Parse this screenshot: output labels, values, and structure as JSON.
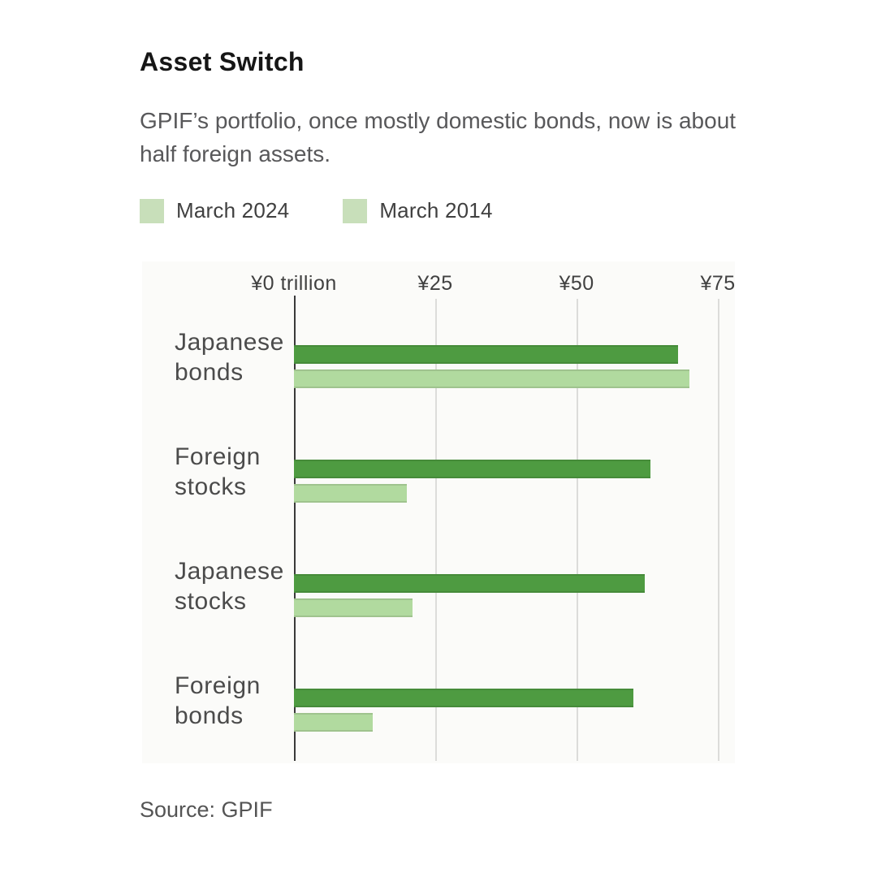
{
  "header": {
    "title": "Asset Switch",
    "subtitle": "GPIF’s portfolio, once mostly domestic bonds, now is about half foreign assets."
  },
  "legend": [
    {
      "label": "March 2024",
      "color": "#c8dfba"
    },
    {
      "label": "March 2014",
      "color": "#c8dfba"
    }
  ],
  "chart_data": {
    "type": "bar",
    "orientation": "horizontal",
    "title": "Asset Switch",
    "unit": "yen trillion",
    "categories": [
      "Japanese bonds",
      "Foreign stocks",
      "Japanese stocks",
      "Foreign bonds"
    ],
    "series": [
      {
        "name": "March 2024",
        "color": "#4e9b41",
        "values": [
          68,
          63,
          62,
          60
        ]
      },
      {
        "name": "March 2014",
        "color": "#b1da9f",
        "values": [
          70,
          20,
          21,
          14
        ]
      }
    ],
    "x_ticks": [
      {
        "value": 0,
        "label": "¥0 trillion"
      },
      {
        "value": 25,
        "label": "¥25"
      },
      {
        "value": 50,
        "label": "¥50"
      },
      {
        "value": 75,
        "label": "¥75"
      }
    ],
    "xlim": [
      0,
      78
    ],
    "grid": "vertical",
    "legend_position": "top"
  },
  "source": "Source: GPIF"
}
